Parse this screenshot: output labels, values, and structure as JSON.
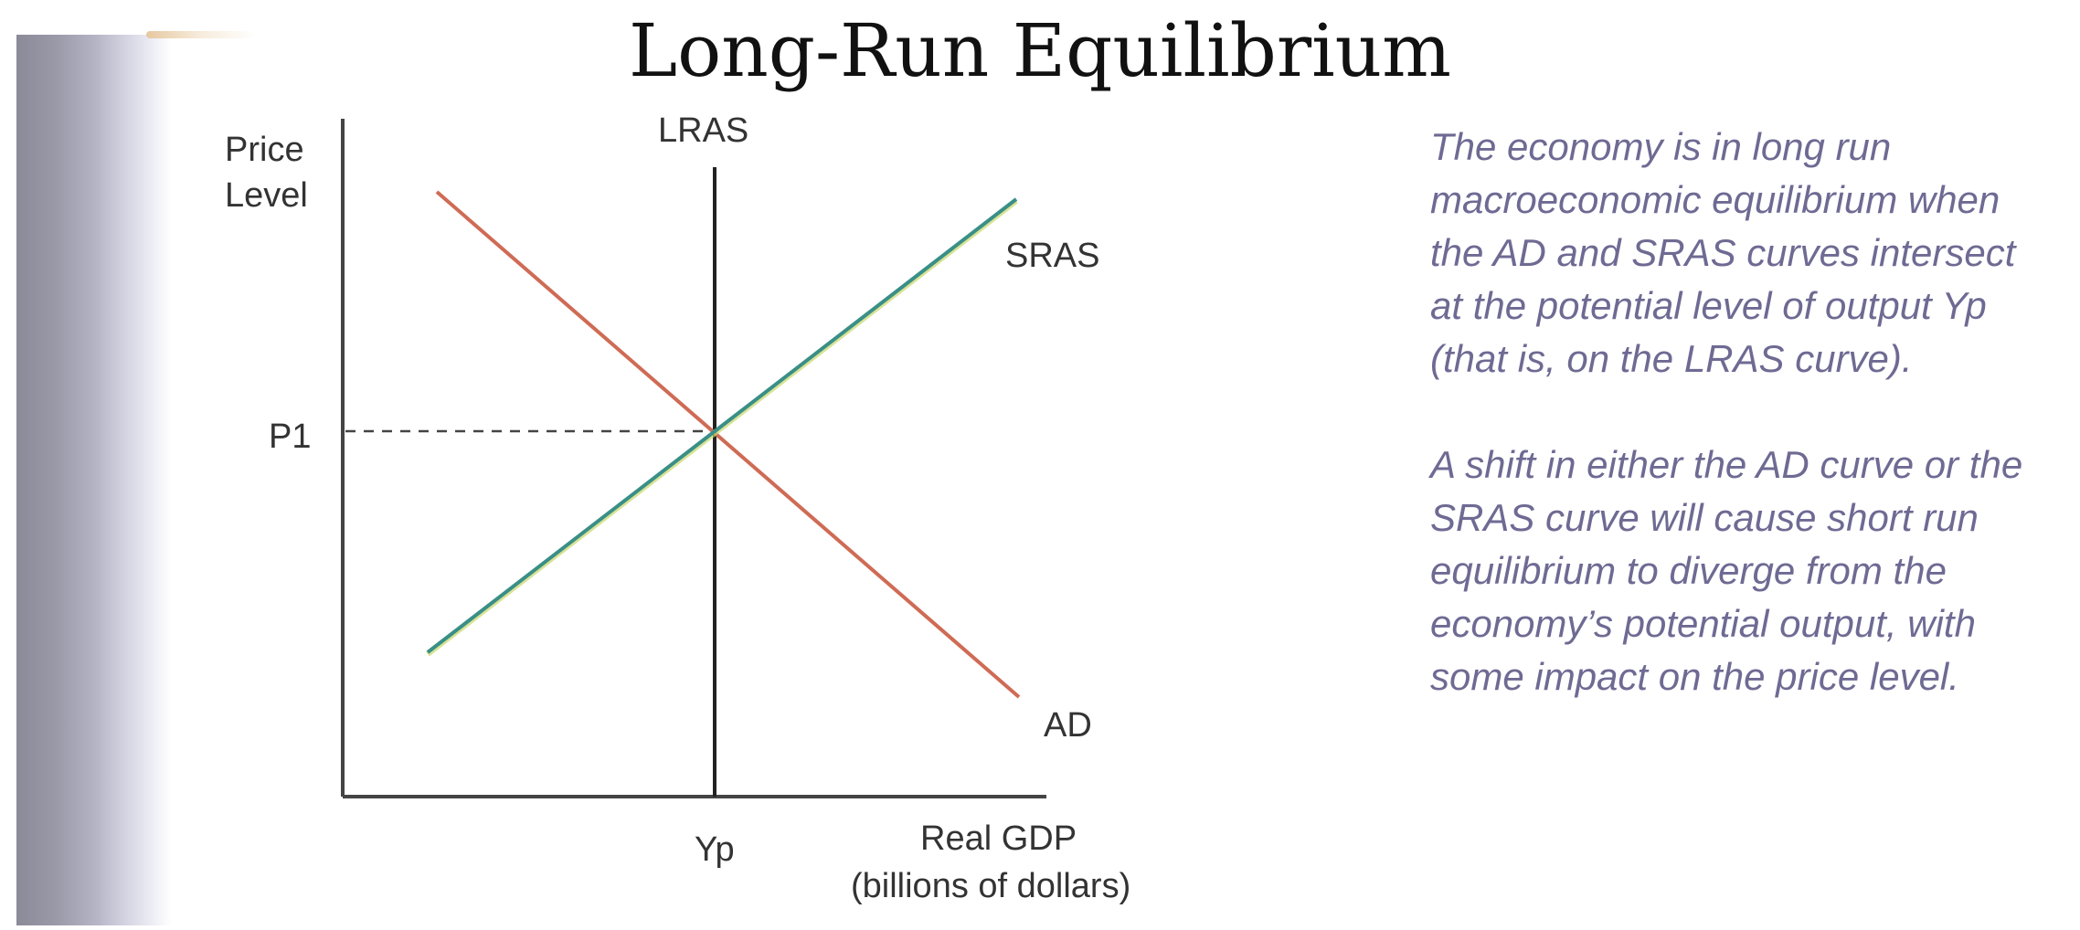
{
  "title": "Long-Run Equilibrium",
  "diagram": {
    "y_axis_label_line1": "Price",
    "y_axis_label_line2": "Level",
    "x_axis_label_line1": "Real GDP",
    "x_axis_label_line2": "(billions of dollars)",
    "lras_label": "LRAS",
    "sras_label": "SRAS",
    "ad_label": "AD",
    "price_label": "P1",
    "output_label": "Yp",
    "colors": {
      "ad": "#cf6b55",
      "sras": "#3a8f87",
      "lras": "#222222",
      "axes": "#444444",
      "text": "#333333"
    }
  },
  "explanation": {
    "paragraph1": "The economy is in long run macroeconomic equilibrium when the AD and SRAS curves intersect at the potential level of output Yp (that is, on the LRAS curve).",
    "paragraph2": "A shift in either the AD curve or the SRAS curve will cause short run equilibrium to diverge from the economy’s potential output, with some impact on the price level.",
    "color": "#6e6a93"
  }
}
